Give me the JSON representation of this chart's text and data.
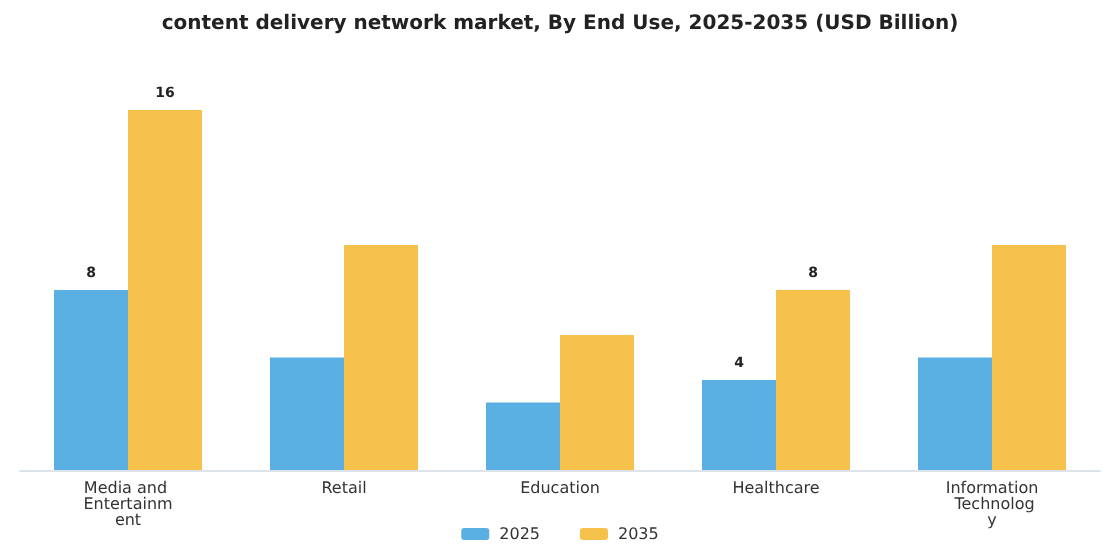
{
  "chart_data": {
    "type": "bar",
    "title": "content delivery network market, By End Use, 2025-2035 (USD Billion)",
    "categories": [
      "Media and Entertainment",
      "Retail",
      "Education",
      "Healthcare",
      "Information Technology"
    ],
    "series": [
      {
        "name": "2025",
        "color": "#5aafe2",
        "values": [
          8,
          5,
          3,
          4,
          5
        ],
        "value_labels": [
          "8",
          null,
          null,
          "4",
          null
        ]
      },
      {
        "name": "2035",
        "color": "#f6c14b",
        "values": [
          16,
          10,
          6,
          8,
          10
        ],
        "value_labels": [
          "16",
          null,
          null,
          "8",
          null
        ]
      }
    ],
    "legend": "bottom",
    "tick_labels": "x"
  }
}
